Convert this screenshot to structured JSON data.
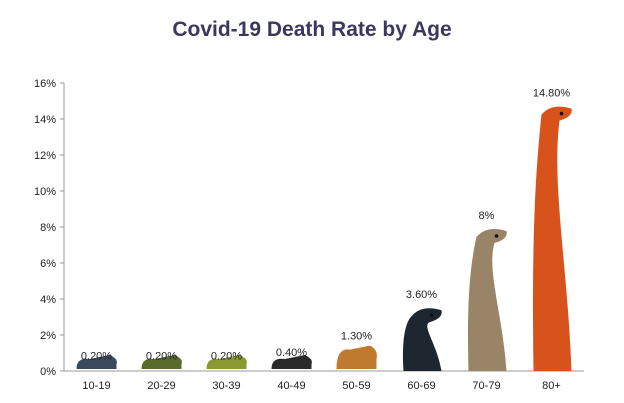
{
  "chart_data": {
    "type": "bar",
    "title": "Covid-19 Death Rate by Age",
    "xlabel": "",
    "ylabel": "",
    "categories": [
      "10-19",
      "20-29",
      "30-39",
      "40-49",
      "50-59",
      "60-69",
      "70-79",
      "80+"
    ],
    "values": [
      0.2,
      0.2,
      0.2,
      0.4,
      1.3,
      3.6,
      8,
      14.8
    ],
    "data_labels": [
      "0.20%",
      "0.20%",
      "0.20%",
      "0.40%",
      "1.30%",
      "3.60%",
      "8%",
      "14.80%"
    ],
    "ylim": [
      0,
      16
    ],
    "yticks": [
      0,
      2,
      4,
      6,
      8,
      10,
      12,
      14,
      16
    ],
    "ytick_labels": [
      "0%",
      "2%",
      "4%",
      "6%",
      "8%",
      "10%",
      "12%",
      "14%",
      "16%"
    ],
    "grid": false,
    "legend": "none",
    "bar_style": "snake pictograms growing taller with value",
    "colors": {
      "title": "#3b3860",
      "bars": [
        "#3a4a5c",
        "#5a6a2a",
        "#8a9a30",
        "#2a2a2a",
        "#c07a30",
        "#1e2630",
        "#9a8468",
        "#d8531c"
      ]
    }
  }
}
